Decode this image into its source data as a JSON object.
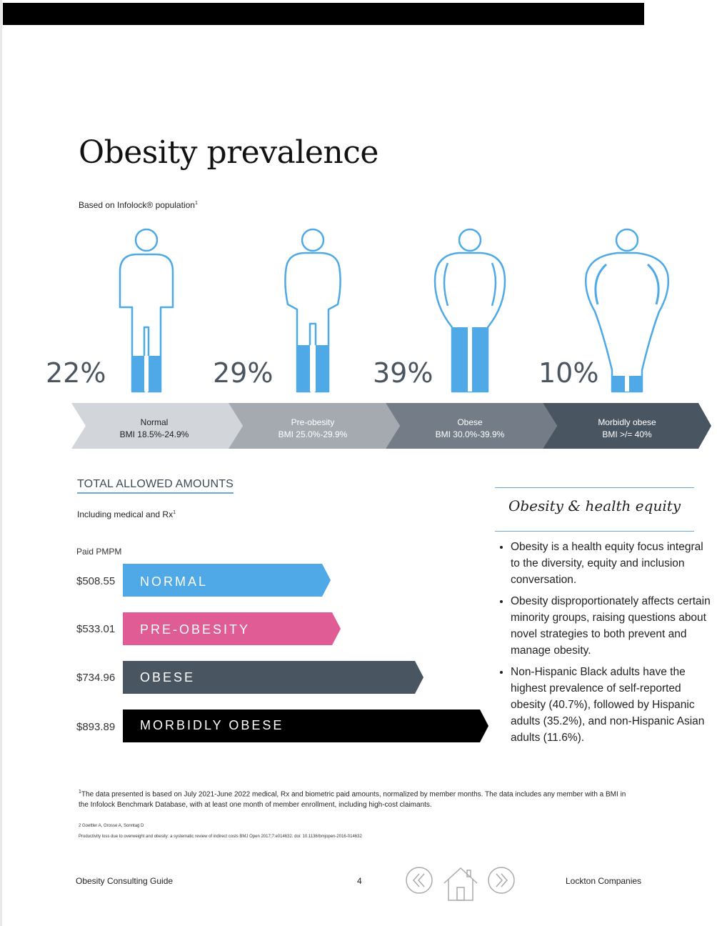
{
  "header": {
    "title": "Obesity prevalence",
    "subtitle": "Based on Infolock® population",
    "subtitle_sup": "1"
  },
  "prevalence": [
    {
      "percent": "22%",
      "label": "Normal",
      "bmi": "BMI 18.5%-24.9%",
      "fill_fraction": 0.22
    },
    {
      "percent": "29%",
      "label": "Pre-obesity",
      "bmi": "BMI 25.0%-29.9%",
      "fill_fraction": 0.29
    },
    {
      "percent": "39%",
      "label": "Obese",
      "bmi": "BMI 30.0%-39.9%",
      "fill_fraction": 0.39
    },
    {
      "percent": "10%",
      "label": "Morbidly obese",
      "bmi": "BMI >/= 40%",
      "fill_fraction": 0.1
    }
  ],
  "amounts": {
    "title": "TOTAL ALLOWED AMOUNTS",
    "subtitle": "Including medical and Rx",
    "subtitle_sup": "1",
    "paid_label": "Paid PMPM",
    "rows": [
      {
        "amount": "$508.55",
        "value": 508.55,
        "label": "NORMAL",
        "color": "#4ea9e6"
      },
      {
        "amount": "$533.01",
        "value": 533.01,
        "label": "PRE-OBESITY",
        "color": "#df5c95"
      },
      {
        "amount": "$734.96",
        "value": 734.96,
        "label": "OBESE",
        "color": "#4a5562"
      },
      {
        "amount": "$893.89",
        "value": 893.89,
        "label": "MORBIDLY OBESE",
        "color": "#000000"
      }
    ]
  },
  "equity": {
    "title": "Obesity & health equity",
    "bullets": [
      "Obesity is a health equity focus integral to the diversity, equity and inclusion conversation.",
      "Obesity disproportionately affects certain minority groups, raising questions about novel strategies to both prevent and manage obesity.",
      "Non-Hispanic Black adults have the highest prevalence of self-reported obesity (40.7%), followed by Hispanic adults (35.2%), and non-Hispanic Asian adults (11.6%)."
    ]
  },
  "footnotes": {
    "note1_sup": "1",
    "note1": "The data presented is based on July 2021-June 2022 medical, Rx and biometric paid amounts, normalized by member months. The data includes any member with a BMI in the Infolock Benchmark Database, with at least one month of member enrollment, including high-cost claimants.",
    "note2": "2 Goettler A, Grosse A, Sonntag D",
    "note3": "Productivity loss due to overweight and obesity: a systematic review of indirect costs BMJ Open 2017;7:e014632. doi: 10.1136/bmjopen-2016-014632"
  },
  "footer": {
    "left": "Obesity Consulting Guide",
    "page": "4",
    "right": "Lockton Companies"
  },
  "colors": {
    "figure_outline": "#4ea9e6",
    "figure_fill": "#4ea9e6",
    "chevrons": [
      "#d2d5d9",
      "#a5aab1",
      "#737c87",
      "#4a5562"
    ]
  }
}
